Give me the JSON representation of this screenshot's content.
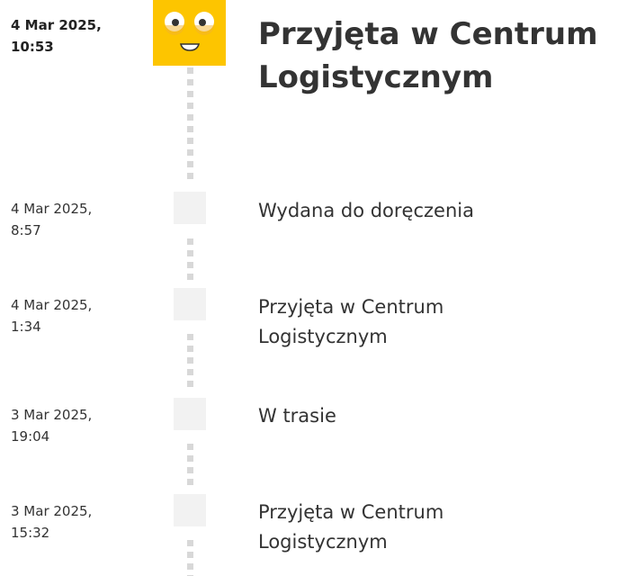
{
  "events": [
    {
      "date": "4 Mar 2025,",
      "time": "10:53",
      "status": "Przyjęta w Centrum Logistycznym"
    },
    {
      "date": "4 Mar 2025,",
      "time": "8:57",
      "status": "Wydana do doręczenia"
    },
    {
      "date": "4 Mar 2025,",
      "time": "1:34",
      "status": "Przyjęta w Centrum Logistycznym"
    },
    {
      "date": "3 Mar 2025,",
      "time": "19:04",
      "status": "W trasie"
    },
    {
      "date": "3 Mar 2025,",
      "time": "15:32",
      "status": "Przyjęta w Centrum Logistycznym"
    }
  ],
  "colors": {
    "logo": "#fdc500",
    "marker": "#f2f2f2",
    "dots": "#d8d8d8"
  }
}
